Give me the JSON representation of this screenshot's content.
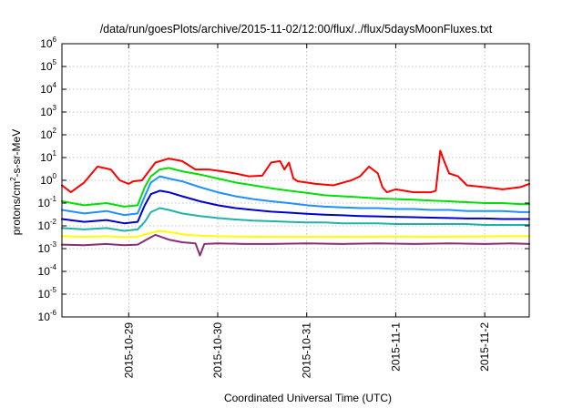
{
  "chart_data": {
    "type": "line",
    "title": "/data/run/goesPlots/archive/2015-11-02/12:00/flux/../flux/5daysMoonFluxes.txt",
    "xlabel": "Coordinated Universal Time (UTC)",
    "ylabel": "protons/cm²-s-sr-MeV",
    "ylabel_parts": {
      "base": "protons/cm",
      "sup": "2",
      "rest": "-s-sr-MeV"
    },
    "x_unit": "day",
    "x_reference": "2015-10-28",
    "xlim": [
      0.25,
      5.5
    ],
    "yscale": "log",
    "ylim": [
      1e-06,
      1000000.0
    ],
    "grid": true,
    "x_ticks": [
      {
        "value": 1,
        "label": "2015-10-29"
      },
      {
        "value": 2,
        "label": "2015-10-30"
      },
      {
        "value": 3,
        "label": "2015-10-31"
      },
      {
        "value": 4,
        "label": "2015-11-1"
      },
      {
        "value": 5,
        "label": "2015-11-2"
      }
    ],
    "y_ticks": [
      {
        "value": 1e-06,
        "base": "10",
        "exp": "-6"
      },
      {
        "value": 1e-05,
        "base": "10",
        "exp": "-5"
      },
      {
        "value": 0.0001,
        "base": "10",
        "exp": "-4"
      },
      {
        "value": 0.001,
        "base": "10",
        "exp": "-3"
      },
      {
        "value": 0.01,
        "base": "10",
        "exp": "-2"
      },
      {
        "value": 0.1,
        "base": "10",
        "exp": "-1"
      },
      {
        "value": 1.0,
        "base": "10",
        "exp": "0"
      },
      {
        "value": 10.0,
        "base": "10",
        "exp": "1"
      },
      {
        "value": 100.0,
        "base": "10",
        "exp": "2"
      },
      {
        "value": 1000.0,
        "base": "10",
        "exp": "3"
      },
      {
        "value": 10000.0,
        "base": "10",
        "exp": "4"
      },
      {
        "value": 100000.0,
        "base": "10",
        "exp": "5"
      },
      {
        "value": 1000000.0,
        "base": "10",
        "exp": "6"
      }
    ],
    "series": [
      {
        "color": "#ff0000",
        "x": [
          0.25,
          0.35,
          0.5,
          0.65,
          0.8,
          0.9,
          1.0,
          1.05,
          1.15,
          1.3,
          1.45,
          1.6,
          1.75,
          1.9,
          2.05,
          2.2,
          2.35,
          2.5,
          2.6,
          2.7,
          2.75,
          2.8,
          2.85,
          2.9,
          3.0,
          3.1,
          3.3,
          3.5,
          3.6,
          3.7,
          3.8,
          3.85,
          3.9,
          4.0,
          4.2,
          4.4,
          4.45,
          4.5,
          4.55,
          4.6,
          4.7,
          4.8,
          5.0,
          5.2,
          5.4,
          5.5
        ],
        "y": [
          0.6,
          0.3,
          0.8,
          4.0,
          3.0,
          1.0,
          0.7,
          0.9,
          1.0,
          6.0,
          9.0,
          7.0,
          3.0,
          3.0,
          2.5,
          2.0,
          1.5,
          1.6,
          6.0,
          7.0,
          3.0,
          6.0,
          1.2,
          0.9,
          0.8,
          0.7,
          0.6,
          1.0,
          1.5,
          4.0,
          2.0,
          0.5,
          0.3,
          0.4,
          0.3,
          0.3,
          0.35,
          20.0,
          6.0,
          2.0,
          1.5,
          0.6,
          0.5,
          0.4,
          0.5,
          0.7
        ]
      },
      {
        "color": "#00e000",
        "x": [
          0.25,
          0.5,
          0.75,
          0.95,
          1.1,
          1.18,
          1.25,
          1.35,
          1.45,
          1.6,
          1.8,
          2.0,
          2.2,
          2.4,
          2.6,
          2.8,
          3.0,
          3.2,
          3.4,
          3.6,
          3.8,
          4.0,
          4.2,
          4.4,
          4.6,
          4.8,
          5.0,
          5.2,
          5.4,
          5.5
        ],
        "y": [
          0.12,
          0.08,
          0.1,
          0.07,
          0.08,
          0.5,
          1.5,
          3.0,
          3.5,
          2.5,
          1.8,
          1.2,
          0.8,
          0.6,
          0.45,
          0.35,
          0.28,
          0.22,
          0.2,
          0.18,
          0.16,
          0.15,
          0.14,
          0.13,
          0.12,
          0.11,
          0.1,
          0.1,
          0.09,
          0.09
        ]
      },
      {
        "color": "#1e90ff",
        "x": [
          0.25,
          0.5,
          0.75,
          0.95,
          1.1,
          1.18,
          1.25,
          1.35,
          1.45,
          1.6,
          1.8,
          2.0,
          2.2,
          2.4,
          2.6,
          2.8,
          3.0,
          3.2,
          3.4,
          3.6,
          3.8,
          4.0,
          4.2,
          4.4,
          4.6,
          4.8,
          5.0,
          5.2,
          5.4,
          5.5
        ],
        "y": [
          0.05,
          0.035,
          0.045,
          0.03,
          0.035,
          0.2,
          0.8,
          1.5,
          1.2,
          0.9,
          0.5,
          0.3,
          0.2,
          0.15,
          0.12,
          0.1,
          0.08,
          0.07,
          0.065,
          0.06,
          0.06,
          0.055,
          0.055,
          0.05,
          0.05,
          0.045,
          0.045,
          0.045,
          0.04,
          0.04
        ]
      },
      {
        "color": "#0000cd",
        "x": [
          0.25,
          0.5,
          0.75,
          0.95,
          1.1,
          1.18,
          1.25,
          1.35,
          1.45,
          1.6,
          1.8,
          2.0,
          2.2,
          2.4,
          2.6,
          2.8,
          3.0,
          3.2,
          3.4,
          3.6,
          3.8,
          4.0,
          4.2,
          4.4,
          4.6,
          4.8,
          5.0,
          5.2,
          5.4,
          5.5
        ],
        "y": [
          0.02,
          0.015,
          0.018,
          0.013,
          0.015,
          0.08,
          0.25,
          0.35,
          0.3,
          0.2,
          0.12,
          0.08,
          0.06,
          0.05,
          0.042,
          0.038,
          0.034,
          0.031,
          0.029,
          0.027,
          0.026,
          0.025,
          0.024,
          0.023,
          0.022,
          0.021,
          0.021,
          0.02,
          0.02,
          0.02
        ]
      },
      {
        "color": "#20b2aa",
        "x": [
          0.25,
          0.5,
          0.75,
          0.95,
          1.1,
          1.18,
          1.25,
          1.35,
          1.45,
          1.6,
          1.8,
          2.0,
          2.2,
          2.4,
          2.6,
          2.8,
          3.0,
          3.2,
          3.4,
          3.6,
          3.8,
          4.0,
          4.2,
          4.4,
          4.6,
          4.8,
          5.0,
          5.2,
          5.4,
          5.5
        ],
        "y": [
          0.008,
          0.007,
          0.008,
          0.006,
          0.007,
          0.015,
          0.04,
          0.06,
          0.05,
          0.035,
          0.027,
          0.022,
          0.019,
          0.017,
          0.016,
          0.015,
          0.014,
          0.014,
          0.013,
          0.013,
          0.013,
          0.012,
          0.012,
          0.012,
          0.012,
          0.012,
          0.011,
          0.011,
          0.011,
          0.011
        ]
      },
      {
        "color": "#ffff00",
        "x": [
          0.25,
          0.5,
          0.75,
          0.95,
          1.1,
          1.2,
          1.35,
          1.5,
          1.65,
          1.8,
          2.0,
          2.2,
          2.5,
          2.8,
          3.0,
          3.3,
          3.6,
          4.0,
          4.4,
          4.8,
          5.2,
          5.5
        ],
        "y": [
          0.0035,
          0.0033,
          0.0035,
          0.0032,
          0.0033,
          0.0045,
          0.006,
          0.005,
          0.004,
          0.0037,
          0.0035,
          0.0034,
          0.0033,
          0.0033,
          0.0033,
          0.0033,
          0.0033,
          0.0034,
          0.0033,
          0.0034,
          0.0035,
          0.0035
        ]
      },
      {
        "color": "#8b2e6f",
        "x": [
          0.25,
          0.5,
          0.75,
          0.95,
          1.1,
          1.2,
          1.3,
          1.45,
          1.6,
          1.75,
          1.8,
          1.85,
          2.0,
          2.3,
          2.6,
          3.0,
          3.4,
          3.8,
          4.2,
          4.6,
          5.0,
          5.3,
          5.5
        ],
        "y": [
          0.0015,
          0.0014,
          0.0016,
          0.0014,
          0.0015,
          0.0025,
          0.004,
          0.0025,
          0.0019,
          0.0017,
          0.0005,
          0.0016,
          0.0017,
          0.0016,
          0.0016,
          0.0017,
          0.0016,
          0.0017,
          0.0016,
          0.0017,
          0.0016,
          0.0017,
          0.0016
        ]
      }
    ]
  }
}
